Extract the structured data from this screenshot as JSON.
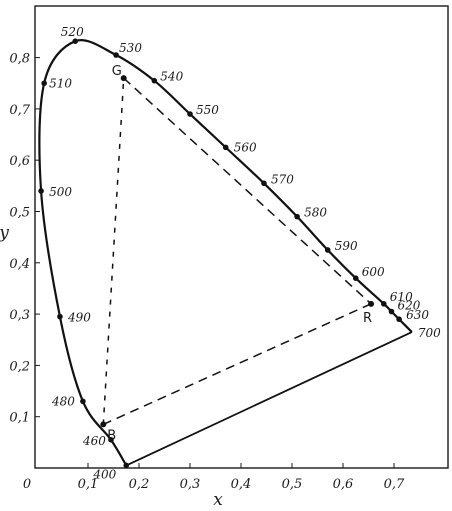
{
  "chart_data": {
    "type": "scatter",
    "title": "",
    "xlabel": "x",
    "ylabel": "y",
    "xlim": [
      0,
      0.8
    ],
    "ylim": [
      0,
      0.9
    ],
    "grid": false,
    "x_ticks": [
      "0",
      "0,1",
      "0,2",
      "0,3",
      "0,4",
      "0,5",
      "0,6",
      "0,7"
    ],
    "y_ticks": [
      "0,1",
      "0,2",
      "0,3",
      "0,4",
      "0,5",
      "0,6",
      "0,7",
      "0,8"
    ],
    "spectral_locus": [
      {
        "label": "400",
        "x": 0.175,
        "y": 0.005
      },
      {
        "label": "460",
        "x": 0.145,
        "y": 0.055
      },
      {
        "label": "480",
        "x": 0.09,
        "y": 0.13
      },
      {
        "label": "490",
        "x": 0.045,
        "y": 0.295
      },
      {
        "label": "500",
        "x": 0.008,
        "y": 0.54
      },
      {
        "label": "510",
        "x": 0.014,
        "y": 0.75
      },
      {
        "label": "520",
        "x": 0.075,
        "y": 0.832
      },
      {
        "label": "530",
        "x": 0.155,
        "y": 0.805
      },
      {
        "label": "540",
        "x": 0.23,
        "y": 0.755
      },
      {
        "label": "550",
        "x": 0.3,
        "y": 0.69
      },
      {
        "label": "560",
        "x": 0.37,
        "y": 0.625
      },
      {
        "label": "570",
        "x": 0.445,
        "y": 0.555
      },
      {
        "label": "580",
        "x": 0.51,
        "y": 0.49
      },
      {
        "label": "590",
        "x": 0.57,
        "y": 0.425
      },
      {
        "label": "600",
        "x": 0.625,
        "y": 0.37
      },
      {
        "label": "610",
        "x": 0.68,
        "y": 0.32
      },
      {
        "label": "620",
        "x": 0.695,
        "y": 0.305
      },
      {
        "label": "630",
        "x": 0.71,
        "y": 0.29
      },
      {
        "label": "700",
        "x": 0.735,
        "y": 0.265
      }
    ],
    "primaries": [
      {
        "label": "G",
        "x": 0.17,
        "y": 0.76
      },
      {
        "label": "R",
        "x": 0.655,
        "y": 0.32
      },
      {
        "label": "B",
        "x": 0.13,
        "y": 0.085
      }
    ]
  }
}
